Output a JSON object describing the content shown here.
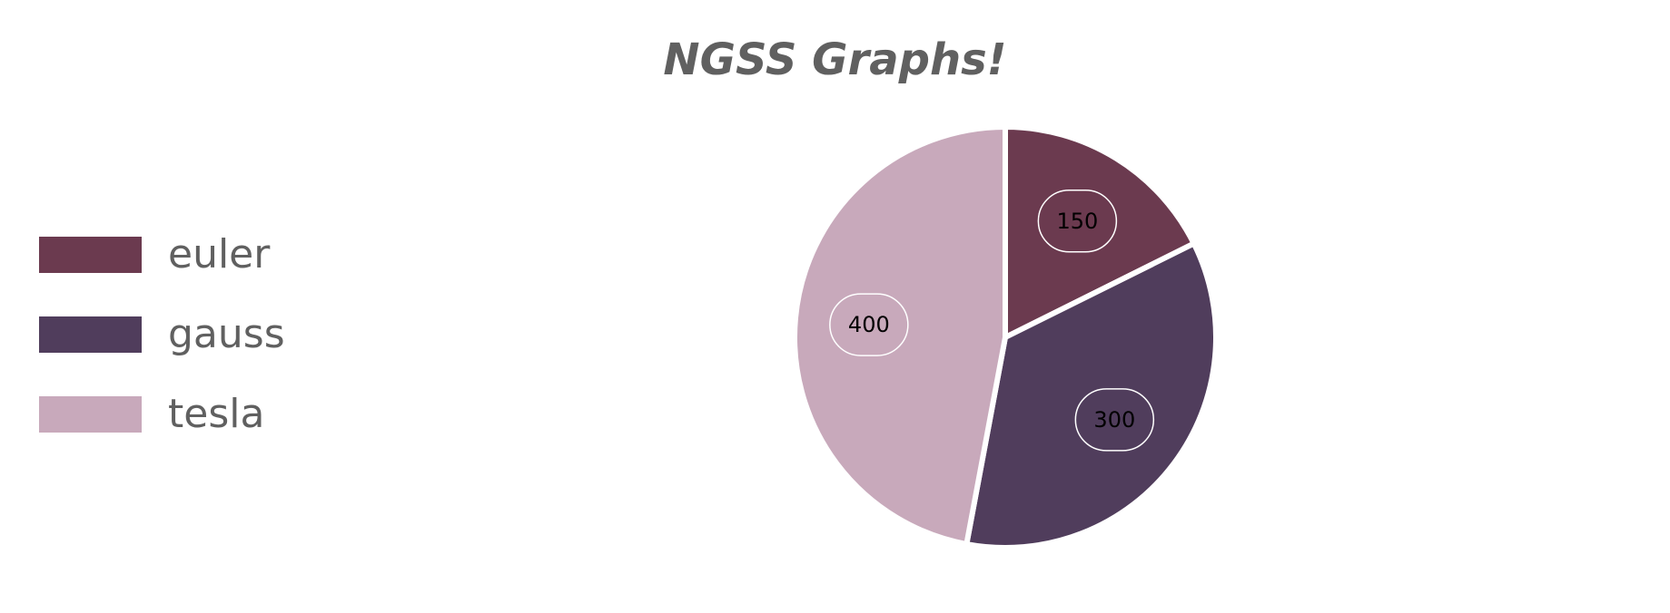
{
  "chart_data": {
    "type": "pie",
    "title": "NGSS Graphs!",
    "categories": [
      "euler",
      "gauss",
      "tesla"
    ],
    "values": [
      150,
      300,
      400
    ],
    "colors": [
      "#6b3a4f",
      "#503d5c",
      "#c8a9bb"
    ],
    "legend_position": "left"
  }
}
